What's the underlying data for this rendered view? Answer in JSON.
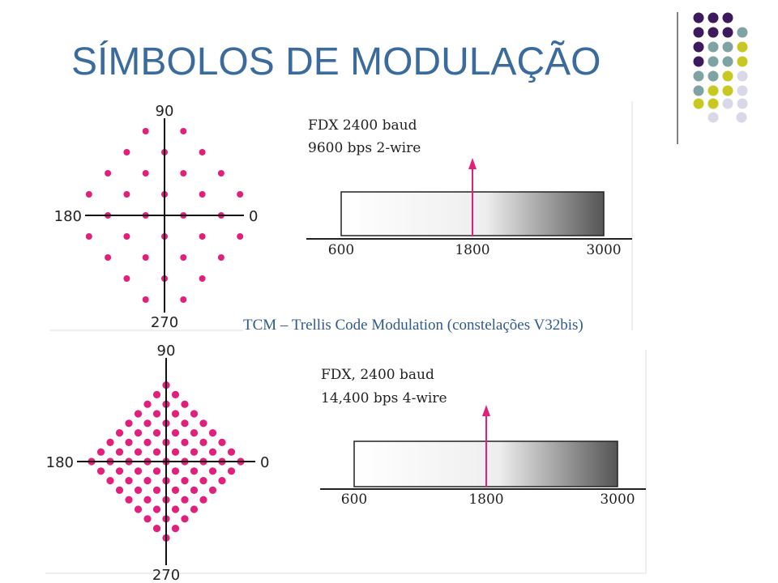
{
  "title": "SÍMBOLOS DE MODULAÇÃO",
  "caption": "TCM – Trellis Code Modulation (constelações V32bis)",
  "panels": [
    {
      "constellation": {
        "top": "90",
        "left": "180",
        "right": "0",
        "bottom": "270"
      },
      "spectrum": {
        "label_lines": [
          "FDX 2400 baud",
          "9600 bps 2-wire"
        ],
        "axis_labels": [
          "600",
          "1800",
          "3000"
        ]
      }
    },
    {
      "constellation": {
        "top": "90",
        "left": "180",
        "right": "0",
        "bottom": "270"
      },
      "spectrum": {
        "label_lines": [
          "FDX, 2400 baud",
          "14,400 bps 4-wire"
        ],
        "axis_labels": [
          "600",
          "1800",
          "3000"
        ]
      }
    }
  ]
}
